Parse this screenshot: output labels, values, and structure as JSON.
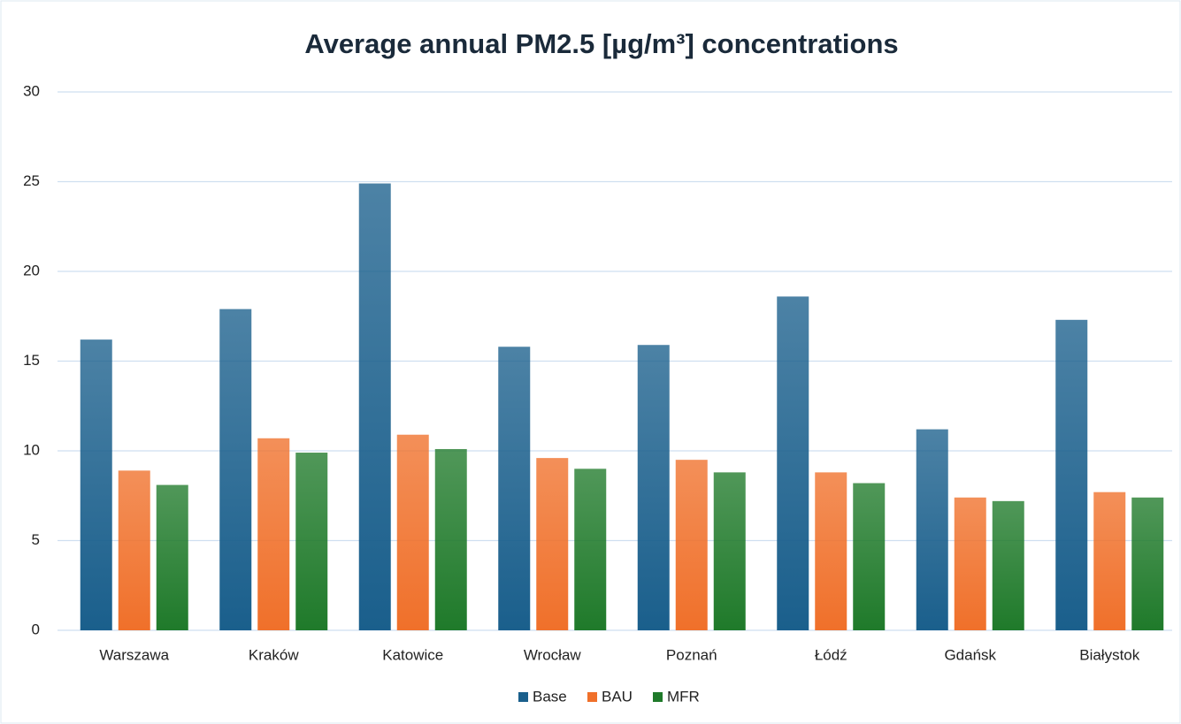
{
  "chart_data": {
    "type": "bar",
    "title": "Average annual PM2.5 [µg/m³] concentrations",
    "categories": [
      "Warszawa",
      "Kraków",
      "Katowice",
      "Wrocław",
      "Poznań",
      "Łódź",
      "Gdańsk",
      "Białystok"
    ],
    "series": [
      {
        "name": "Base",
        "color": "#1a5f8c",
        "values": [
          16.2,
          17.9,
          24.9,
          15.8,
          15.9,
          18.6,
          11.2,
          17.3
        ]
      },
      {
        "name": "BAU",
        "color": "#f0702a",
        "values": [
          8.9,
          10.7,
          10.9,
          9.6,
          9.5,
          8.8,
          7.4,
          7.7
        ]
      },
      {
        "name": "MFR",
        "color": "#1f7a2a",
        "values": [
          8.1,
          9.9,
          10.1,
          9.0,
          8.8,
          8.2,
          7.2,
          7.4
        ]
      }
    ],
    "ylim": [
      0,
      30
    ],
    "yticks": [
      0,
      5,
      10,
      15,
      20,
      25,
      30
    ],
    "grid": true,
    "legend": "bottom"
  }
}
